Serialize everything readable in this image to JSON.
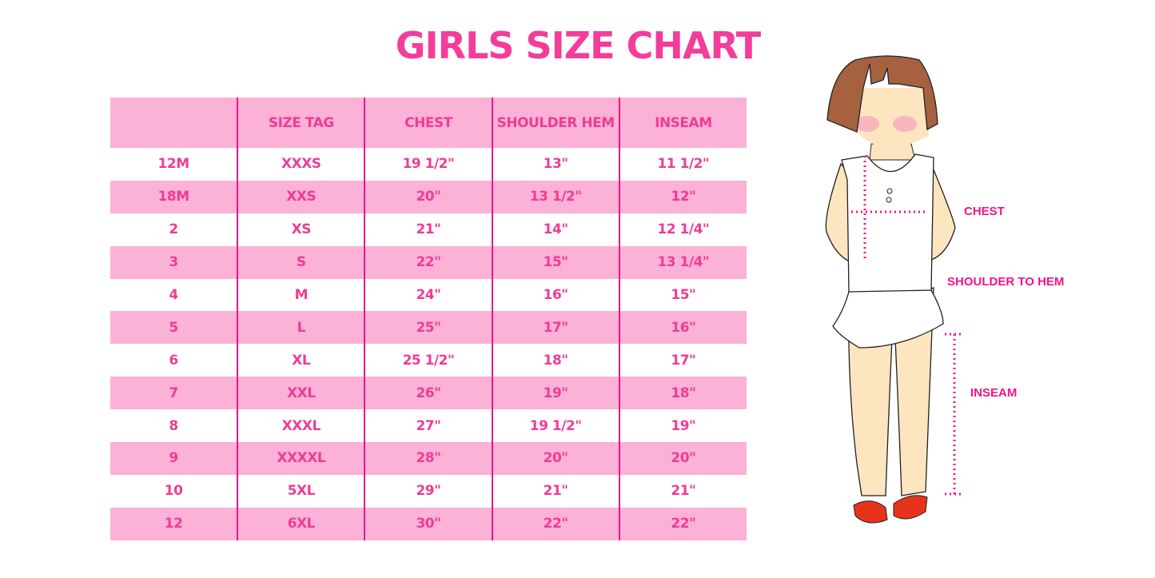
{
  "title": "GIRLS SIZE CHART",
  "table": {
    "headers": [
      "",
      "SIZE TAG",
      "CHEST",
      "SHOULDER HEM",
      "INSEAM"
    ],
    "rows": [
      [
        "12M",
        "XXXS",
        "19 1/2\"",
        "13\"",
        "11 1/2\""
      ],
      [
        "18M",
        "XXS",
        "20\"",
        "13 1/2\"",
        "12\""
      ],
      [
        "2",
        "XS",
        "21\"",
        "14\"",
        "12 1/4\""
      ],
      [
        "3",
        "S",
        "22\"",
        "15\"",
        "13 1/4\""
      ],
      [
        "4",
        "M",
        "24\"",
        "16\"",
        "15\""
      ],
      [
        "5",
        "L",
        "25\"",
        "17\"",
        "16\""
      ],
      [
        "6",
        "XL",
        "25 1/2\"",
        "18\"",
        "17\""
      ],
      [
        "7",
        "XXL",
        "26\"",
        "19\"",
        "18\""
      ],
      [
        "8",
        "XXXL",
        "27\"",
        "19 1/2\"",
        "19\""
      ],
      [
        "9",
        "XXXXL",
        "28\"",
        "20\"",
        "20\""
      ],
      [
        "10",
        "5XL",
        "29\"",
        "21\"",
        "21\""
      ],
      [
        "12",
        "6XL",
        "30\"",
        "22\"",
        "22\""
      ]
    ]
  },
  "figure": {
    "labels": {
      "chest": "CHEST",
      "shoulder": "SHOULDER TO HEM",
      "inseam": "INSEAM"
    }
  },
  "colors": {
    "accent": "#ee3c96",
    "row_pink": "#fcb1d6",
    "divider": "#e8168b"
  }
}
